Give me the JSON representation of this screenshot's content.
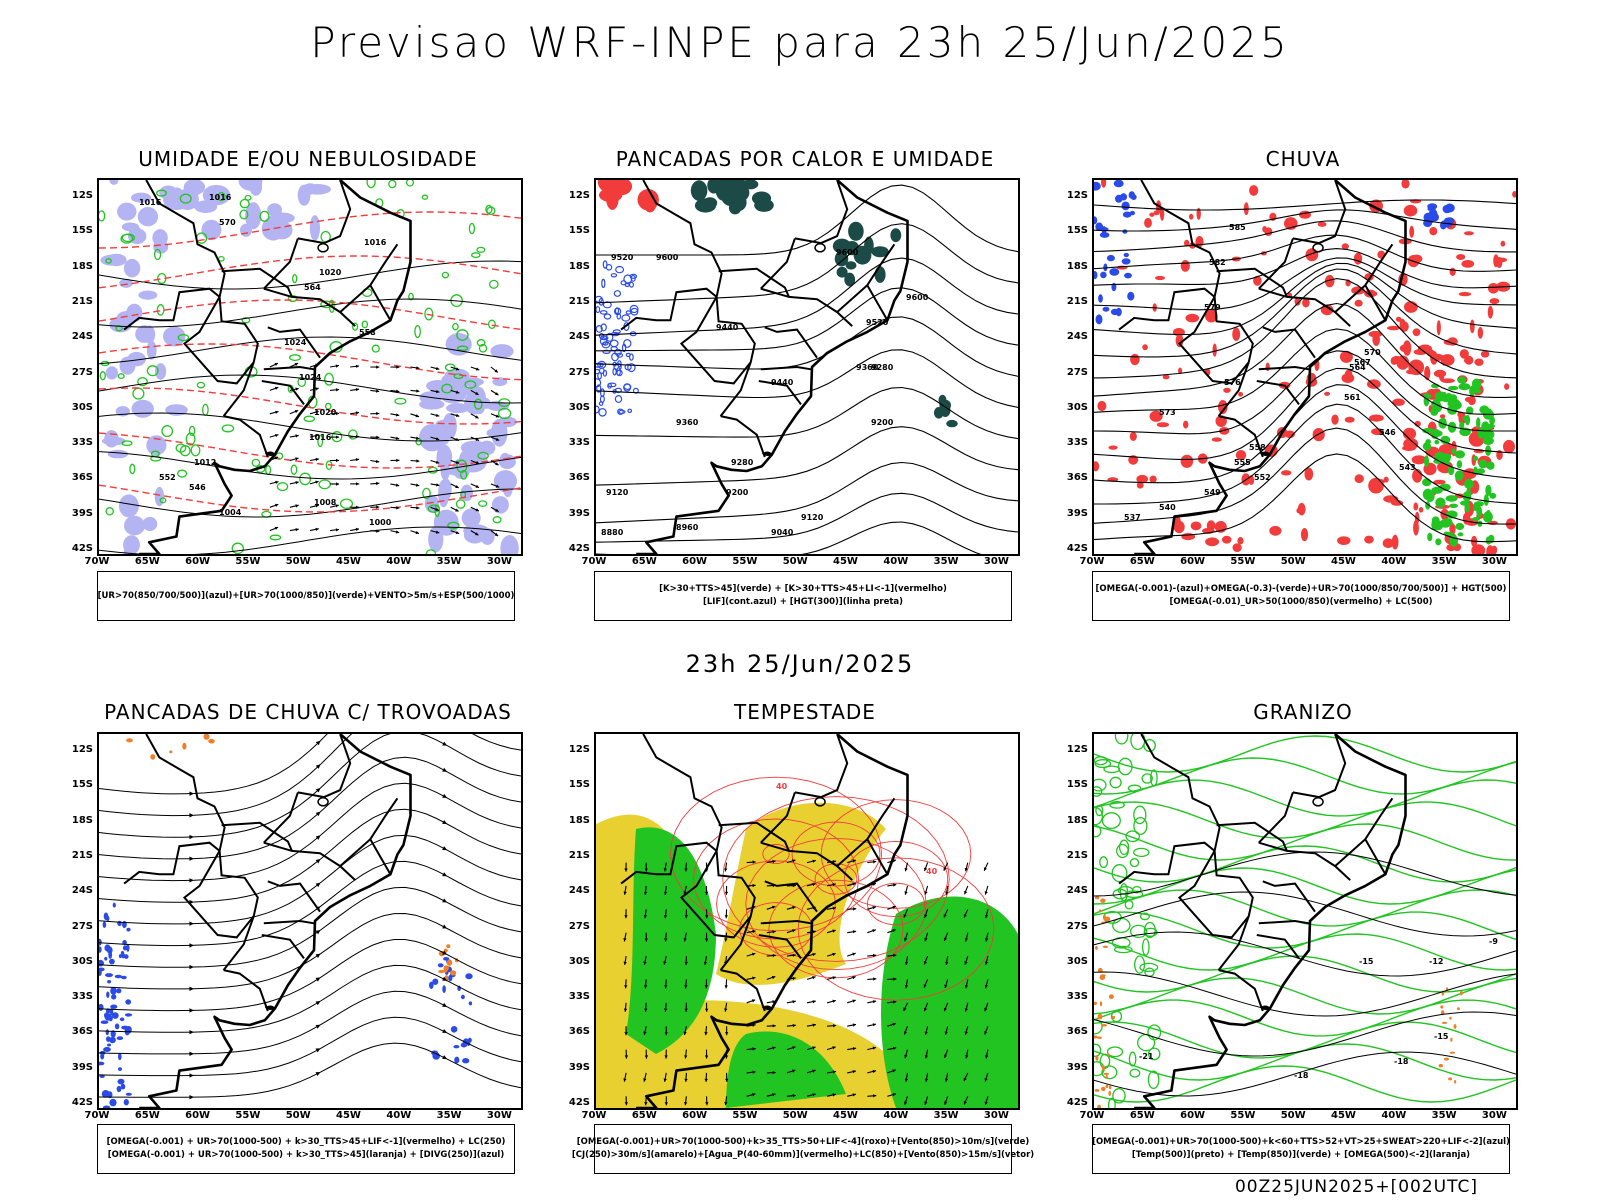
{
  "main_title": "Previsao WRF-INPE  para 23h 25/Jun/2025",
  "mid_title": "23h 25/Jun/2025",
  "footer": "00Z25JUN2025+[002UTC]",
  "lat_labels": [
    "12S",
    "15S",
    "18S",
    "21S",
    "24S",
    "27S",
    "30S",
    "33S",
    "36S",
    "39S",
    "42S"
  ],
  "lon_labels": [
    "70W",
    "65W",
    "60W",
    "55W",
    "50W",
    "45W",
    "40W",
    "35W",
    "30W"
  ],
  "colors": {
    "red": "#f23c3c",
    "green": "#22c422",
    "blue": "#2b4be8",
    "lavender": "#b4b4f2",
    "darkteal": "#1c4a46",
    "yellow": "#e8d030",
    "orange": "#f07f28",
    "purple": "#a050c8"
  },
  "panels": [
    {
      "id": "umidade",
      "title": "UMIDADE E/OU NEBULOSIDADE",
      "legend": [
        "[UR>70(850/700/500)](azul)+[UR>70(1000/850)](verde)+VENTO>5m/s+ESP(500/1000)"
      ],
      "contour_labels": [
        "1016",
        "1016",
        "1016",
        "1020",
        "1024",
        "1024",
        "1020",
        "1016",
        "1012",
        "1008",
        "1004",
        "1000",
        "570",
        "564",
        "558",
        "552",
        "546"
      ]
    },
    {
      "id": "pancadas",
      "title": "PANCADAS POR CALOR E UMIDADE",
      "legend": [
        "[K>30+TTS>45](verde) + [K>30+TTS>45+LI<-1](vermelho)",
        "[LIF](cont.azul) + [HGT(300)](linha preta)"
      ],
      "contour_labels": [
        "9600",
        "9520",
        "9600",
        "9600",
        "9520",
        "9440",
        "9440",
        "9360",
        "9360",
        "9280",
        "9280",
        "9200",
        "9200",
        "9120",
        "9120",
        "9040",
        "8960",
        "8880"
      ]
    },
    {
      "id": "chuva",
      "title": "CHUVA",
      "legend": [
        "[OMEGA(-0.001)-(azul)+OMEGA(-0.3)-(verde)+UR>70(1000/850/700/500)] + HGT(500)",
        "[OMEGA(-0.01)_UR>50(1000/850)(vermelho) + LC(500)"
      ],
      "contour_labels": [
        "585",
        "582",
        "579",
        "576",
        "573",
        "570",
        "567",
        "564",
        "561",
        "558",
        "555",
        "552",
        "549",
        "546",
        "543",
        "540",
        "537"
      ]
    },
    {
      "id": "trovoadas",
      "title": "PANCADAS DE CHUVA C/ TROVOADAS",
      "legend": [
        "[OMEGA(-0.001) + UR>70(1000-500) + k>30_TTS>45+LIF<-1](vermelho) + LC(250)",
        "[OMEGA(-0.001) + UR>70(1000-500) + k>30_TTS>45](laranja) + [DIVG(250)](azul)"
      ],
      "contour_labels": []
    },
    {
      "id": "tempestade",
      "title": "TEMPESTADE",
      "legend": [
        "[OMEGA(-0.001)+UR>70(1000-500)+k>35_TTS>50+LIF<-4](roxo)+[Vento(850)>10m/s](verde)",
        "[CJ(250)>30m/s](amarelo)+[Agua_P(40-60mm)](vermelho)+LC(850)+[Vento(850)>15m/s](vetor)"
      ],
      "contour_labels": [
        "40",
        "40"
      ]
    },
    {
      "id": "granizo",
      "title": "GRANIZO",
      "legend": [
        "[OMEGA(-0.001)+UR>70(1000-500)+k<60+TTS>52+VT>25+SWEAT>220+LIF<-2](azul)",
        "[Temp(500)](preto) + [Temp(850)](verde) + [OMEGA(500)<-2](laranja)"
      ],
      "contour_labels": [
        "-18",
        "-15",
        "-12",
        "-15",
        "-18",
        "-21",
        "-9"
      ]
    }
  ]
}
